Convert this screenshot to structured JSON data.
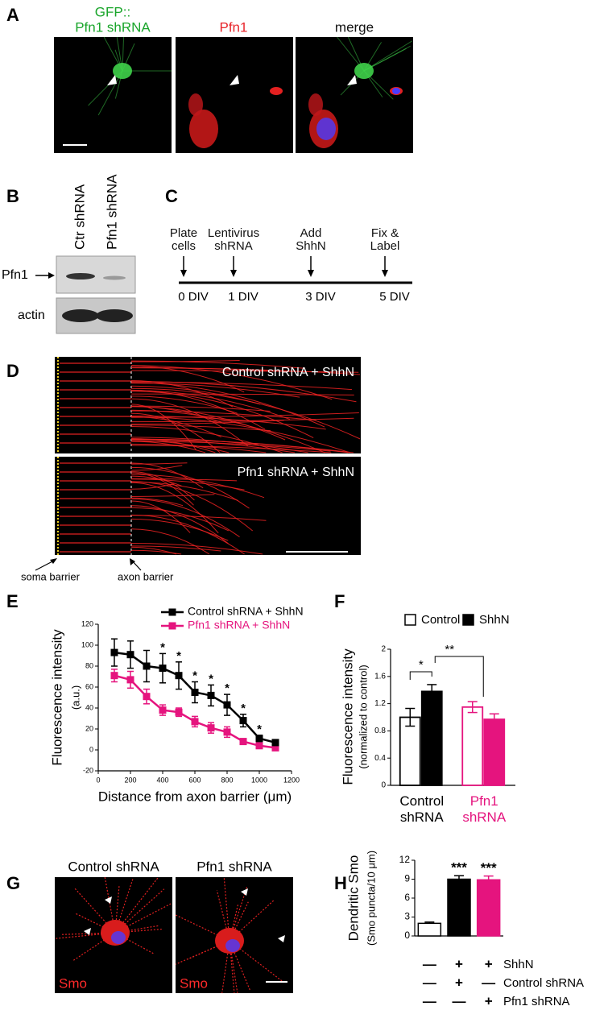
{
  "panel_labels": [
    "A",
    "B",
    "C",
    "D",
    "E",
    "F",
    "G",
    "H"
  ],
  "panel_a": {
    "titles": [
      "GFP::",
      "Pfn1 shRNA",
      "Pfn1",
      "merge"
    ]
  },
  "panel_b": {
    "lanes": [
      "Ctr shRNA",
      "Pfn1 shRNA"
    ],
    "rows": [
      "Pfn1",
      "actin"
    ]
  },
  "panel_c": {
    "steps": [
      {
        "label": "Plate cells",
        "day": "0 DIV"
      },
      {
        "label": "Lentivirus shRNA",
        "day": "1 DIV"
      },
      {
        "label": "Add ShhN",
        "day": "3 DIV"
      },
      {
        "label": "Fix & Label",
        "day": "5 DIV"
      }
    ]
  },
  "panel_d": {
    "conditions": [
      "Control shRNA + ShhN",
      "Pfn1 shRNA + ShhN"
    ],
    "barriers": [
      "soma barrier",
      "axon barrier"
    ]
  },
  "panel_g": {
    "titles": [
      "Control shRNA",
      "Pfn1 shRNA"
    ],
    "stain": "Smo"
  },
  "chart_data": [
    {
      "type": "line",
      "x": [
        100,
        200,
        300,
        400,
        500,
        600,
        700,
        800,
        900,
        1000,
        1100
      ],
      "series": [
        {
          "name": "Control shRNA + ShhN",
          "color": "#000000",
          "values": [
            93,
            91,
            80,
            78,
            71,
            55,
            52,
            43,
            28,
            11,
            7
          ],
          "errors": [
            13,
            13,
            15,
            14,
            13,
            10,
            10,
            10,
            6,
            3,
            2
          ],
          "significance": [
            null,
            null,
            null,
            "*",
            "*",
            "*",
            "*",
            "*",
            "*",
            "*",
            null
          ]
        },
        {
          "name": "Pfn1 shRNA + ShhN",
          "color": "#e5147e",
          "values": [
            71,
            67,
            51,
            38,
            36,
            27,
            21,
            17,
            8,
            4,
            2
          ],
          "errors": [
            6,
            8,
            7,
            5,
            4,
            5,
            5,
            5,
            2,
            2,
            1
          ]
        }
      ],
      "xlim": [
        0,
        1200
      ],
      "xticks": [
        0,
        200,
        400,
        600,
        800,
        1000,
        1200
      ],
      "ylim": [
        -20,
        120
      ],
      "yticks": [
        -20,
        0,
        20,
        40,
        60,
        80,
        100,
        120
      ],
      "x_label": "Distance from axon barrier (μm)",
      "y_label": [
        "Fluorescence intensity",
        "(a.u.)"
      ],
      "legend": "top"
    },
    {
      "type": "bar",
      "categories": [
        "Control shRNA",
        "Pfn1 shRNA"
      ],
      "category_colors": [
        "#000000",
        "#e5147e"
      ],
      "series": [
        {
          "name": "Control",
          "color": "#000000",
          "style": "open",
          "values": [
            1.0,
            1.15
          ],
          "errors": [
            0.13,
            0.08
          ]
        },
        {
          "name": "ShhN",
          "color": "#000000",
          "style": "filled",
          "values": [
            1.38,
            0.97
          ],
          "errors": [
            0.1,
            0.08
          ]
        }
      ],
      "ylim": [
        0,
        2
      ],
      "yticks": [
        0,
        0.4,
        0.8,
        1.2,
        1.6,
        2
      ],
      "y_label": [
        "Fluorescence intensity",
        "(normalized to control)"
      ],
      "annotations": [
        "*",
        "**"
      ],
      "legend": "top"
    },
    {
      "type": "bar",
      "values": [
        2.0,
        9.0,
        8.9
      ],
      "errors": [
        0.2,
        0.55,
        0.6
      ],
      "colors": [
        "#ffffff",
        "#000000",
        "#e5147e"
      ],
      "ylim": [
        0,
        12
      ],
      "yticks": [
        0,
        3,
        6,
        9,
        12
      ],
      "y_label": [
        "Dendritic Smo",
        "(Smo puncta/10 μm)"
      ],
      "annotations": [
        null,
        "***",
        "***"
      ],
      "conditions": [
        {
          "name": "ShhN",
          "marks": [
            "—",
            "+",
            "+"
          ]
        },
        {
          "name": "Control shRNA",
          "marks": [
            "—",
            "+",
            "—"
          ]
        },
        {
          "name": "Pfn1 shRNA",
          "marks": [
            "—",
            "—",
            "+"
          ]
        }
      ]
    }
  ]
}
